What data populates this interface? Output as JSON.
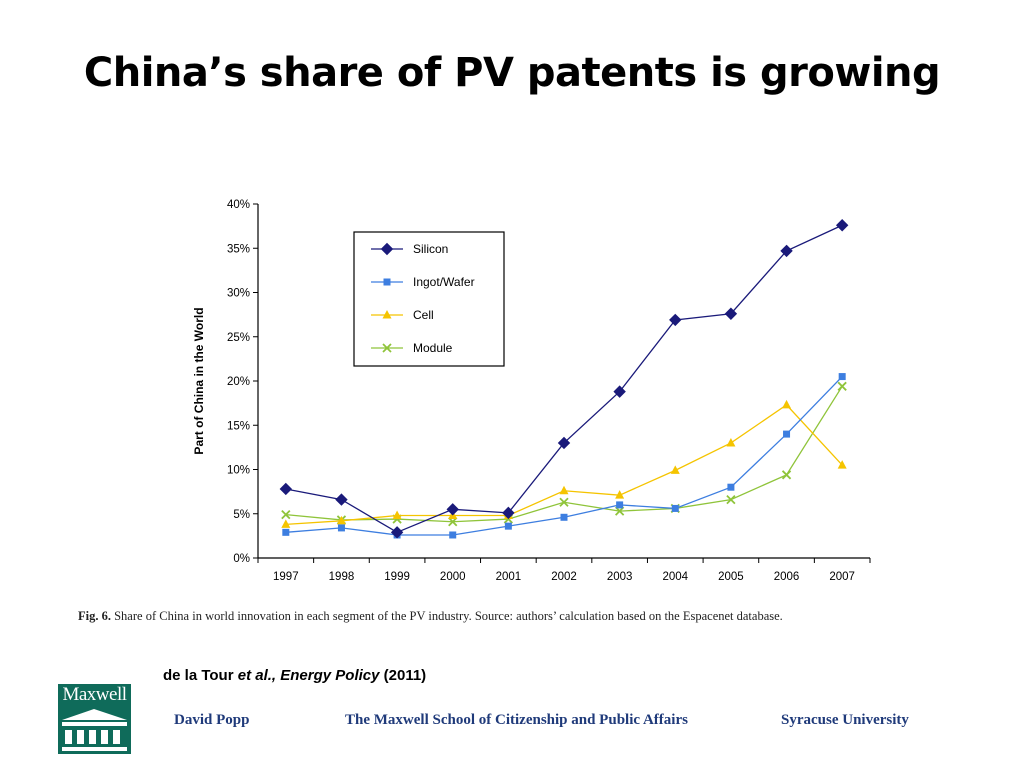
{
  "slide": {
    "title": "China’s share of PV patents is growing"
  },
  "chart_data": {
    "type": "line",
    "title": "",
    "xlabel": "",
    "ylabel": "Part of China in the World",
    "ylim": [
      0,
      40
    ],
    "yticks": [
      "0%",
      "5%",
      "10%",
      "15%",
      "20%",
      "25%",
      "30%",
      "35%",
      "40%"
    ],
    "categories": [
      "1997",
      "1998",
      "1999",
      "2000",
      "2001",
      "2002",
      "2003",
      "2004",
      "2005",
      "2006",
      "2007"
    ],
    "legend_position": "top-left",
    "series": [
      {
        "name": "Silicon",
        "color": "#1a1a7a",
        "marker": "diamond",
        "values": [
          7.8,
          6.6,
          2.9,
          5.5,
          5.1,
          13.0,
          18.8,
          26.9,
          27.6,
          34.7,
          37.6
        ]
      },
      {
        "name": "Ingot/Wafer",
        "color": "#3d7ee0",
        "marker": "square",
        "values": [
          2.9,
          3.4,
          2.6,
          2.6,
          3.6,
          4.6,
          6.0,
          5.6,
          8.0,
          14.0,
          20.5
        ]
      },
      {
        "name": "Cell",
        "color": "#f5c400",
        "marker": "triangle",
        "values": [
          3.8,
          4.2,
          4.8,
          4.8,
          4.8,
          7.6,
          7.1,
          9.9,
          13.0,
          17.3,
          10.5
        ]
      },
      {
        "name": "Module",
        "color": "#8fc43a",
        "marker": "x",
        "values": [
          4.9,
          4.3,
          4.4,
          4.1,
          4.4,
          6.3,
          5.3,
          5.6,
          6.6,
          9.4,
          19.4
        ]
      }
    ]
  },
  "figure": {
    "caption_label": "Fig. 6.",
    "caption_text": "Share of China in world innovation in each segment of the PV industry. Source: authors’ calculation based on the Espacenet database."
  },
  "citation": {
    "authors": "de la Tour",
    "etal_journal": "et al., Energy Policy",
    "year": "(2011)"
  },
  "footer": {
    "logo_text": "Maxwell",
    "author": "David Popp",
    "school": "The Maxwell School of Citizenship and Public Affairs",
    "university": "Syracuse University"
  }
}
